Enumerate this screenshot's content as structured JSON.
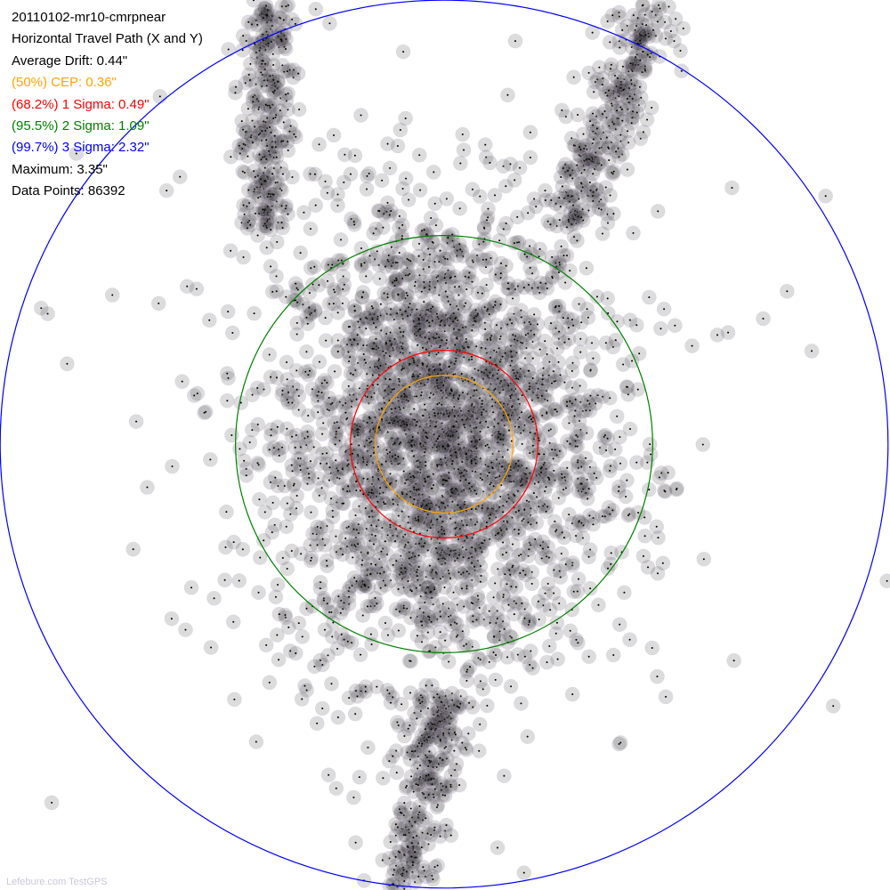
{
  "chart_data": {
    "type": "scatter",
    "title": "20110102-mr10-cmrpnear",
    "subtitle": "Horizontal Travel Path (X and Y)",
    "units": "inches",
    "stats": {
      "average_drift": "Average Drift: 0.44\"",
      "cep": "(50%) CEP: 0.36\"",
      "sigma1": "(68.2%) 1 Sigma: 0.49\"",
      "sigma2": "(95.5%) 2 Sigma: 1.09\"",
      "sigma3": "(99.7%) 3 Sigma: 2.32\"",
      "maximum": "Maximum: 3.35\"",
      "data_points": "Data Points: 86392"
    },
    "rings": [
      {
        "name": "CEP",
        "radius": 0.36,
        "color": "#ffa500"
      },
      {
        "name": "1 Sigma",
        "radius": 0.49,
        "color": "#ff0000"
      },
      {
        "name": "2 Sigma",
        "radius": 1.09,
        "color": "#008000"
      },
      {
        "name": "3 Sigma",
        "radius": 2.32,
        "color": "#0000ff"
      }
    ],
    "point_count": 86392,
    "grid": false,
    "legend": "top-left"
  },
  "footer": "Lefebure.com TestGPS"
}
